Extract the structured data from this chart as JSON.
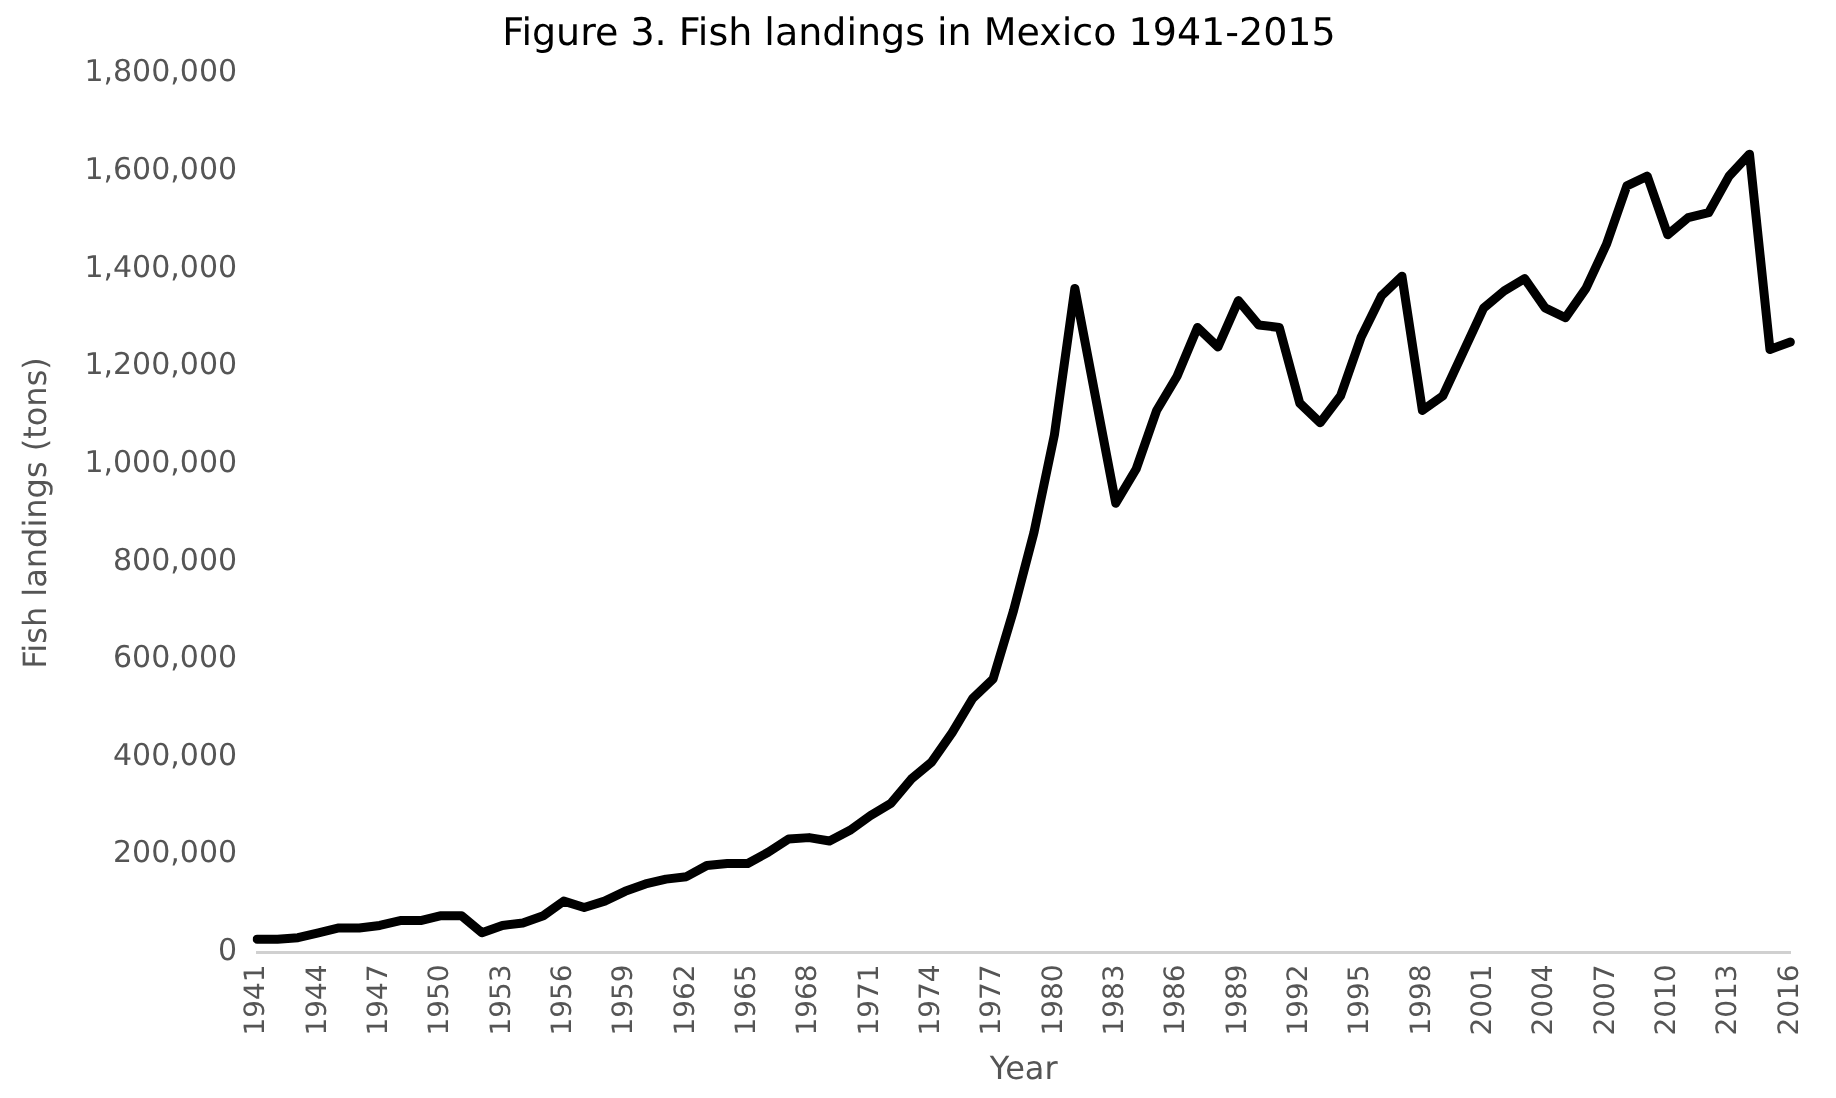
{
  "chart_data": {
    "type": "line",
    "title": "Figure 3. Fish landings in Mexico 1941-2015",
    "xlabel": "Year",
    "ylabel": "Fish landings (tons)",
    "categories": [
      "1941",
      null,
      null,
      "1944",
      null,
      null,
      "1947",
      null,
      null,
      "1950",
      null,
      null,
      "1953",
      null,
      null,
      "1956",
      null,
      null,
      "1959",
      null,
      null,
      "1962",
      null,
      null,
      "1965",
      null,
      null,
      "1968",
      null,
      null,
      "1971",
      null,
      null,
      "1974",
      null,
      null,
      "1977",
      null,
      null,
      "1980",
      null,
      null,
      "1983",
      null,
      null,
      "1986",
      null,
      null,
      "1989",
      null,
      null,
      "1992",
      null,
      null,
      "1995",
      null,
      null,
      "1998",
      null,
      null,
      "2001",
      null,
      null,
      "2004",
      null,
      null,
      "2007",
      null,
      null,
      "2010",
      null,
      null,
      "2013",
      null,
      null,
      "2016"
    ],
    "series": [
      {
        "color": "#000000",
        "values": [
          27000,
          27000,
          30000,
          40000,
          50000,
          50000,
          55000,
          65000,
          65000,
          75000,
          75000,
          40000,
          55000,
          60000,
          75000,
          105000,
          92000,
          105000,
          125000,
          140000,
          150000,
          155000,
          178000,
          182000,
          182000,
          205000,
          232000,
          235000,
          228000,
          250000,
          280000,
          305000,
          355000,
          390000,
          450000,
          520000,
          560000,
          700000,
          860000,
          1060000,
          1360000,
          1140000,
          920000,
          990000,
          1110000,
          1180000,
          1280000,
          1240000,
          1335000,
          1285000,
          1280000,
          1125000,
          1085000,
          1140000,
          1260000,
          1345000,
          1385000,
          1110000,
          1140000,
          1230000,
          1320000,
          1355000,
          1380000,
          1320000,
          1300000,
          1360000,
          1450000,
          1570000,
          1590000,
          1470000,
          1505000,
          1515000,
          1590000,
          1635000,
          1235000,
          1250000
        ]
      }
    ],
    "ylim": [
      0,
      1800000
    ],
    "yticks": [
      0,
      {
        "value": 200000,
        "label": "200,000"
      },
      {
        "value": 400000,
        "label": "400,000"
      },
      {
        "value": 600000,
        "label": "600,000"
      },
      {
        "value": 800000,
        "label": "800,000"
      },
      {
        "value": 1000000,
        "label": "1,000,000"
      },
      {
        "value": 1200000,
        "label": "1,200,000"
      },
      {
        "value": 1400000,
        "label": "1,400,000"
      },
      {
        "value": 1600000,
        "label": "1,600,000"
      },
      {
        "value": 1800000,
        "label": "1,800,000"
      }
    ],
    "grid": false,
    "legend": false,
    "marker": "none",
    "line_style": "solid"
  }
}
